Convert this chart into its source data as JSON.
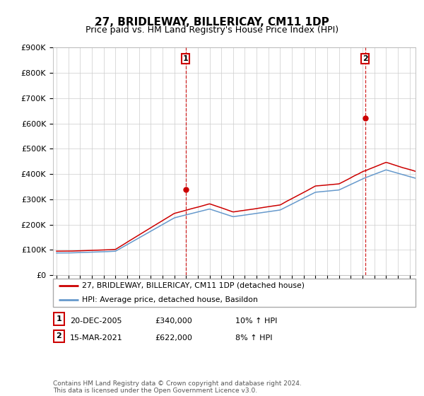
{
  "title": "27, BRIDLEWAY, BILLERICAY, CM11 1DP",
  "subtitle": "Price paid vs. HM Land Registry's House Price Index (HPI)",
  "ylim": [
    0,
    900000
  ],
  "xlim_start": 1994.7,
  "xlim_end": 2025.5,
  "red_line_color": "#cc0000",
  "blue_line_color": "#6699cc",
  "marker1_date": 2005.96,
  "marker1_price": 340000,
  "marker2_date": 2021.21,
  "marker2_price": 622000,
  "legend_line1": "27, BRIDLEWAY, BILLERICAY, CM11 1DP (detached house)",
  "legend_line2": "HPI: Average price, detached house, Basildon",
  "ann1_date": "20-DEC-2005",
  "ann1_price": "£340,000",
  "ann1_hpi": "10% ↑ HPI",
  "ann2_date": "15-MAR-2021",
  "ann2_price": "£622,000",
  "ann2_hpi": "8% ↑ HPI",
  "footer": "Contains HM Land Registry data © Crown copyright and database right 2024.\nThis data is licensed under the Open Government Licence v3.0.",
  "background_color": "#ffffff",
  "grid_color": "#cccccc"
}
